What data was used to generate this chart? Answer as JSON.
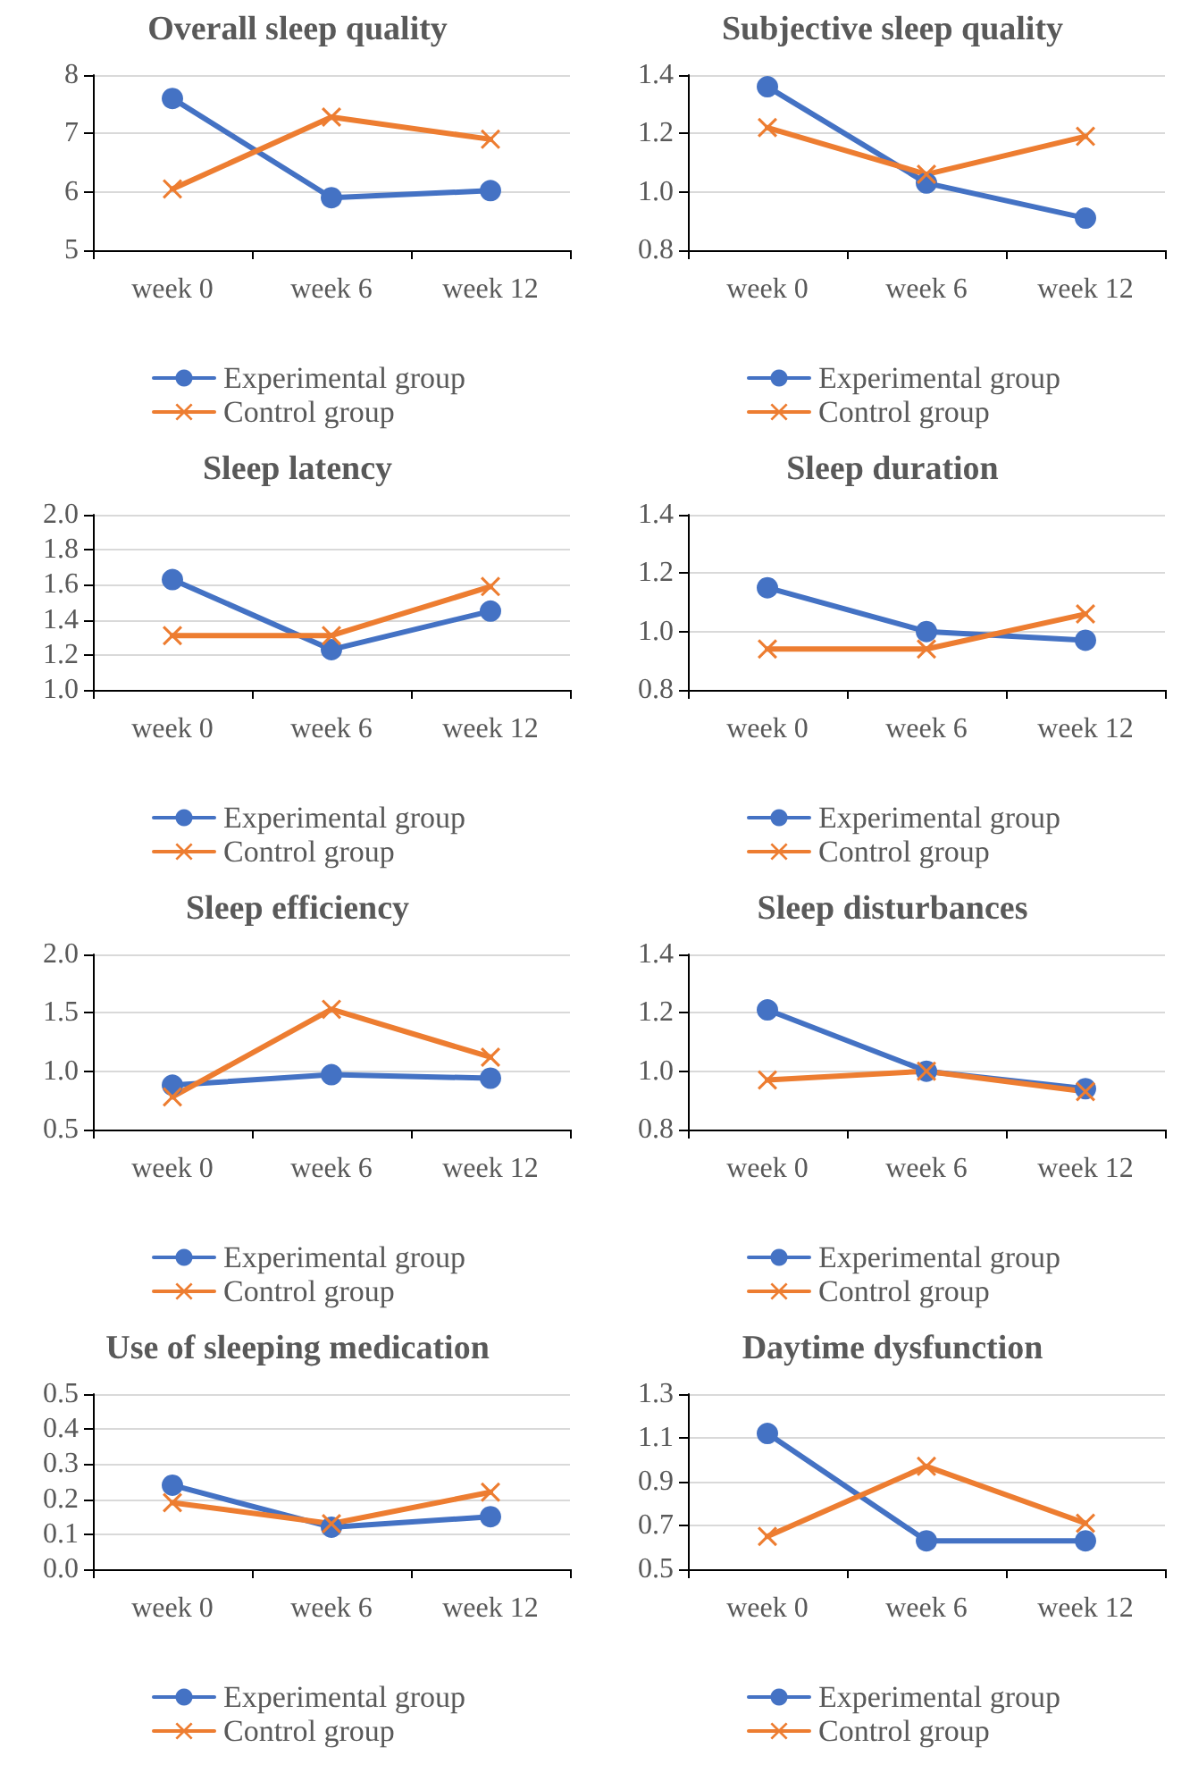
{
  "chart_data": [
    {
      "type": "line",
      "title": "Overall sleep quality",
      "categories": [
        "week 0",
        "week 6",
        "week 12"
      ],
      "ylim": [
        5,
        8
      ],
      "yticks": [
        5,
        6,
        7,
        8
      ],
      "grid": "y",
      "legend": "bottom",
      "series": [
        {
          "name": "Experimental group",
          "color": "#4472c4",
          "marker": "circle",
          "values": [
            7.6,
            5.9,
            6.02
          ]
        },
        {
          "name": "Control group",
          "color": "#ed7d31",
          "marker": "cross",
          "values": [
            6.05,
            7.28,
            6.9
          ]
        }
      ]
    },
    {
      "type": "line",
      "title": "Subjective sleep quality",
      "categories": [
        "week 0",
        "week 6",
        "week 12"
      ],
      "ylim": [
        0.8,
        1.4
      ],
      "yticks": [
        0.8,
        {
          "value": 1,
          "label": "1.0"
        },
        1.2,
        1.4
      ],
      "grid": "y",
      "legend": "bottom",
      "series": [
        {
          "name": "Experimental group",
          "color": "#4472c4",
          "marker": "circle",
          "values": [
            1.36,
            1.03,
            0.91
          ]
        },
        {
          "name": "Control group",
          "color": "#ed7d31",
          "marker": "cross",
          "values": [
            1.22,
            1.06,
            1.19
          ]
        }
      ]
    },
    {
      "type": "line",
      "title": "Sleep latency",
      "categories": [
        "week 0",
        "week 6",
        "week 12"
      ],
      "ylim": [
        1,
        2
      ],
      "yticks": [
        {
          "value": 1,
          "label": "1.0"
        },
        1.2,
        1.4,
        1.6,
        1.8,
        {
          "value": 2,
          "label": "2.0"
        }
      ],
      "grid": "y",
      "legend": "bottom",
      "series": [
        {
          "name": "Experimental group",
          "color": "#4472c4",
          "marker": "circle",
          "values": [
            1.63,
            1.23,
            1.45
          ]
        },
        {
          "name": "Control group",
          "color": "#ed7d31",
          "marker": "cross",
          "values": [
            1.31,
            1.31,
            1.59
          ]
        }
      ]
    },
    {
      "type": "line",
      "title": "Sleep duration",
      "categories": [
        "week 0",
        "week 6",
        "week 12"
      ],
      "ylim": [
        0.8,
        1.4
      ],
      "yticks": [
        0.8,
        {
          "value": 1,
          "label": "1.0"
        },
        1.2,
        1.4
      ],
      "grid": "y",
      "legend": "bottom",
      "series": [
        {
          "name": "Experimental group",
          "color": "#4472c4",
          "marker": "circle",
          "values": [
            1.15,
            1.0,
            0.97
          ]
        },
        {
          "name": "Control group",
          "color": "#ed7d31",
          "marker": "cross",
          "values": [
            0.94,
            0.94,
            1.06
          ]
        }
      ]
    },
    {
      "type": "line",
      "title": "Sleep efficiency",
      "categories": [
        "week 0",
        "week 6",
        "week 12"
      ],
      "ylim": [
        0.5,
        2
      ],
      "yticks": [
        0.5,
        {
          "value": 1,
          "label": "1.0"
        },
        1.5,
        {
          "value": 2,
          "label": "2.0"
        }
      ],
      "grid": "y",
      "legend": "bottom",
      "series": [
        {
          "name": "Experimental group",
          "color": "#4472c4",
          "marker": "circle",
          "values": [
            0.88,
            0.97,
            0.94
          ]
        },
        {
          "name": "Control group",
          "color": "#ed7d31",
          "marker": "cross",
          "values": [
            0.78,
            1.53,
            1.12
          ]
        }
      ]
    },
    {
      "type": "line",
      "title": "Sleep disturbances",
      "categories": [
        "week 0",
        "week 6",
        "week 12"
      ],
      "ylim": [
        0.8,
        1.4
      ],
      "yticks": [
        0.8,
        {
          "value": 1,
          "label": "1.0"
        },
        1.2,
        1.4
      ],
      "grid": "y",
      "legend": "bottom",
      "series": [
        {
          "name": "Experimental group",
          "color": "#4472c4",
          "marker": "circle",
          "values": [
            1.21,
            1.0,
            0.94
          ]
        },
        {
          "name": "Control group",
          "color": "#ed7d31",
          "marker": "cross",
          "values": [
            0.97,
            1.0,
            0.93
          ]
        }
      ]
    },
    {
      "type": "line",
      "title": "Use of sleeping medication",
      "categories": [
        "week 0",
        "week 6",
        "week 12"
      ],
      "ylim": [
        0,
        0.5
      ],
      "yticks": [
        {
          "value": 0,
          "label": "0.0"
        },
        0.1,
        0.2,
        0.3,
        0.4,
        0.5
      ],
      "grid": "y",
      "legend": "bottom",
      "series": [
        {
          "name": "Experimental group",
          "color": "#4472c4",
          "marker": "circle",
          "values": [
            0.24,
            0.12,
            0.15
          ]
        },
        {
          "name": "Control group",
          "color": "#ed7d31",
          "marker": "cross",
          "values": [
            0.19,
            0.13,
            0.22
          ]
        }
      ]
    },
    {
      "type": "line",
      "title": "Daytime dysfunction",
      "categories": [
        "week 0",
        "week 6",
        "week 12"
      ],
      "ylim": [
        0.5,
        1.3
      ],
      "yticks": [
        0.5,
        0.7,
        0.9,
        1.1,
        1.3
      ],
      "grid": "y",
      "legend": "bottom",
      "series": [
        {
          "name": "Experimental group",
          "color": "#4472c4",
          "marker": "circle",
          "values": [
            1.12,
            0.63,
            0.63
          ]
        },
        {
          "name": "Control group",
          "color": "#ed7d31",
          "marker": "cross",
          "values": [
            0.65,
            0.97,
            0.71
          ]
        }
      ]
    }
  ]
}
